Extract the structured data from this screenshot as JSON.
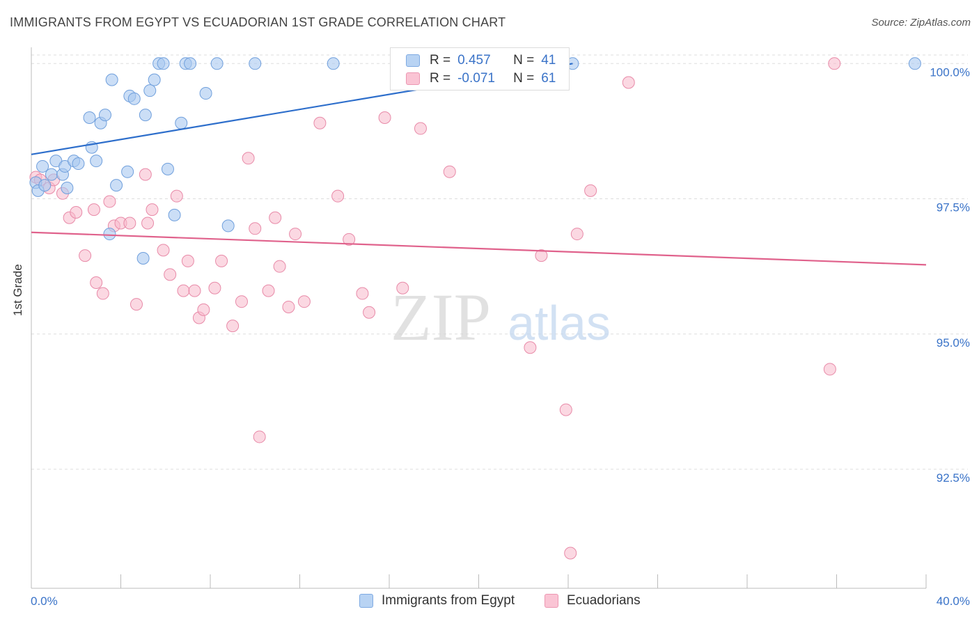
{
  "header": {
    "title": "IMMIGRANTS FROM EGYPT VS ECUADORIAN 1ST GRADE CORRELATION CHART",
    "source": "Source: ZipAtlas.com"
  },
  "watermark": {
    "zip": "ZIP",
    "atlas": "atlas"
  },
  "legend": {
    "series": [
      {
        "r_label": "R =",
        "r_value": "0.457",
        "n_label": "N =",
        "n_value": "41"
      },
      {
        "r_label": "R =",
        "r_value": "-0.071",
        "n_label": "N =",
        "n_value": "61"
      }
    ]
  },
  "bottom_legend": {
    "egypt": "Immigrants from Egypt",
    "ecuador": "Ecuadorians"
  },
  "colors": {
    "egypt_fill": "#a8c8f0",
    "egypt_stroke": "#6f9fdc",
    "egypt_line": "#2d6ecb",
    "ecuador_fill": "#f7b8cb",
    "ecuador_stroke": "#e88aa8",
    "ecuador_line": "#e0628c",
    "tick_text": "#3a73c8",
    "grid": "#dddddd"
  },
  "chart_data": {
    "type": "scatter",
    "title": "IMMIGRANTS FROM EGYPT VS ECUADORIAN 1ST GRADE CORRELATION CHART",
    "xlabel": "",
    "ylabel": "1st Grade",
    "xlim": [
      0,
      40
    ],
    "ylim": [
      90.3,
      100.3
    ],
    "x_tick_labels": [
      "0.0%",
      "40.0%"
    ],
    "y_ticks": [
      92.5,
      95.0,
      97.5,
      100.0
    ],
    "y_tick_labels": [
      "92.5%",
      "95.0%",
      "97.5%",
      "100.0%"
    ],
    "grid": true,
    "legend_placement": "top-center",
    "series": [
      {
        "name": "Immigrants from Egypt",
        "trend": {
          "x": [
            0.0,
            24.2
          ],
          "y": [
            98.32,
            100.0
          ]
        },
        "points": [
          [
            0.2,
            97.8
          ],
          [
            0.3,
            97.65
          ],
          [
            0.5,
            98.1
          ],
          [
            0.6,
            97.75
          ],
          [
            0.9,
            97.95
          ],
          [
            1.1,
            98.2
          ],
          [
            1.4,
            97.95
          ],
          [
            1.5,
            98.1
          ],
          [
            1.6,
            97.7
          ],
          [
            1.9,
            98.2
          ],
          [
            2.1,
            98.15
          ],
          [
            2.6,
            99.0
          ],
          [
            2.7,
            98.45
          ],
          [
            2.9,
            98.2
          ],
          [
            3.1,
            98.9
          ],
          [
            3.3,
            99.05
          ],
          [
            3.5,
            96.85
          ],
          [
            3.6,
            99.7
          ],
          [
            3.8,
            97.75
          ],
          [
            4.3,
            98.0
          ],
          [
            4.4,
            99.4
          ],
          [
            4.6,
            99.35
          ],
          [
            5.0,
            96.4
          ],
          [
            5.1,
            99.05
          ],
          [
            5.3,
            99.5
          ],
          [
            5.5,
            99.7
          ],
          [
            5.7,
            100.0
          ],
          [
            5.9,
            100.0
          ],
          [
            6.1,
            98.05
          ],
          [
            6.4,
            97.2
          ],
          [
            6.7,
            98.9
          ],
          [
            6.9,
            100.0
          ],
          [
            7.1,
            100.0
          ],
          [
            7.8,
            99.45
          ],
          [
            8.3,
            100.0
          ],
          [
            8.8,
            97.0
          ],
          [
            10.0,
            100.0
          ],
          [
            13.5,
            100.0
          ],
          [
            18.0,
            100.0
          ],
          [
            24.2,
            100.0
          ],
          [
            39.5,
            100.0
          ]
        ]
      },
      {
        "name": "Ecuadorians",
        "trend": {
          "x": [
            0.0,
            40.0
          ],
          "y": [
            96.88,
            96.28
          ]
        },
        "points": [
          [
            0.2,
            97.9
          ],
          [
            0.4,
            97.85
          ],
          [
            0.8,
            97.7
          ],
          [
            1.0,
            97.85
          ],
          [
            1.4,
            97.6
          ],
          [
            1.7,
            97.15
          ],
          [
            2.0,
            97.25
          ],
          [
            2.4,
            96.45
          ],
          [
            2.8,
            97.3
          ],
          [
            2.9,
            95.95
          ],
          [
            3.2,
            95.75
          ],
          [
            3.5,
            97.45
          ],
          [
            3.7,
            97.0
          ],
          [
            4.0,
            97.05
          ],
          [
            4.4,
            97.05
          ],
          [
            4.7,
            95.55
          ],
          [
            5.1,
            97.95
          ],
          [
            5.2,
            97.05
          ],
          [
            5.4,
            97.3
          ],
          [
            5.9,
            96.55
          ],
          [
            6.2,
            96.1
          ],
          [
            6.5,
            97.55
          ],
          [
            6.8,
            95.8
          ],
          [
            7.0,
            96.35
          ],
          [
            7.3,
            95.8
          ],
          [
            7.5,
            95.3
          ],
          [
            7.7,
            95.45
          ],
          [
            8.2,
            95.85
          ],
          [
            8.5,
            96.35
          ],
          [
            9.0,
            95.15
          ],
          [
            9.4,
            95.6
          ],
          [
            9.7,
            98.25
          ],
          [
            10.0,
            96.95
          ],
          [
            10.2,
            93.1
          ],
          [
            10.6,
            95.8
          ],
          [
            10.9,
            97.15
          ],
          [
            11.1,
            96.25
          ],
          [
            11.5,
            95.5
          ],
          [
            11.8,
            96.85
          ],
          [
            12.2,
            95.6
          ],
          [
            12.9,
            98.9
          ],
          [
            13.7,
            97.55
          ],
          [
            14.2,
            96.75
          ],
          [
            14.8,
            95.75
          ],
          [
            15.1,
            95.4
          ],
          [
            15.8,
            99.0
          ],
          [
            16.6,
            95.85
          ],
          [
            17.4,
            98.8
          ],
          [
            18.7,
            98.0
          ],
          [
            19.7,
            100.0
          ],
          [
            21.9,
            100.0
          ],
          [
            22.3,
            94.75
          ],
          [
            22.7,
            100.0
          ],
          [
            22.8,
            96.45
          ],
          [
            23.9,
            93.6
          ],
          [
            24.1,
            90.95
          ],
          [
            24.4,
            96.85
          ],
          [
            25.0,
            97.65
          ],
          [
            26.7,
            99.65
          ],
          [
            35.7,
            94.35
          ],
          [
            35.9,
            100.0
          ]
        ]
      }
    ]
  }
}
